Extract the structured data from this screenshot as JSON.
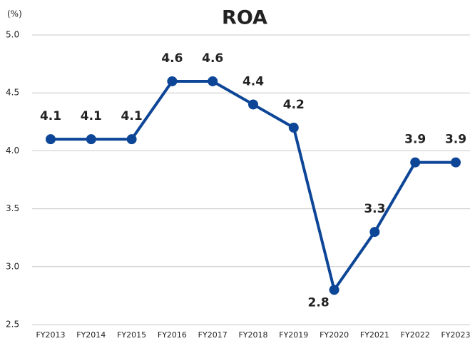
{
  "chart_data": {
    "type": "line",
    "title": "ROA",
    "y_unit_label": "(%)",
    "categories": [
      "FY2013",
      "FY2014",
      "FY2015",
      "FY2016",
      "FY2017",
      "FY2018",
      "FY2019",
      "FY2020",
      "FY2021",
      "FY2022",
      "FY2023"
    ],
    "values": [
      4.1,
      4.1,
      4.1,
      4.6,
      4.6,
      4.4,
      4.2,
      2.8,
      3.3,
      3.9,
      3.9
    ],
    "color": "#0d4597",
    "ylim": [
      2.5,
      5.0
    ],
    "yticks": [
      2.5,
      {
        "value": 3,
        "label": "3.0"
      },
      3.5,
      {
        "value": 4,
        "label": "4.0"
      },
      4.5,
      {
        "value": 5,
        "label": "5.0"
      }
    ],
    "grid": true
  }
}
